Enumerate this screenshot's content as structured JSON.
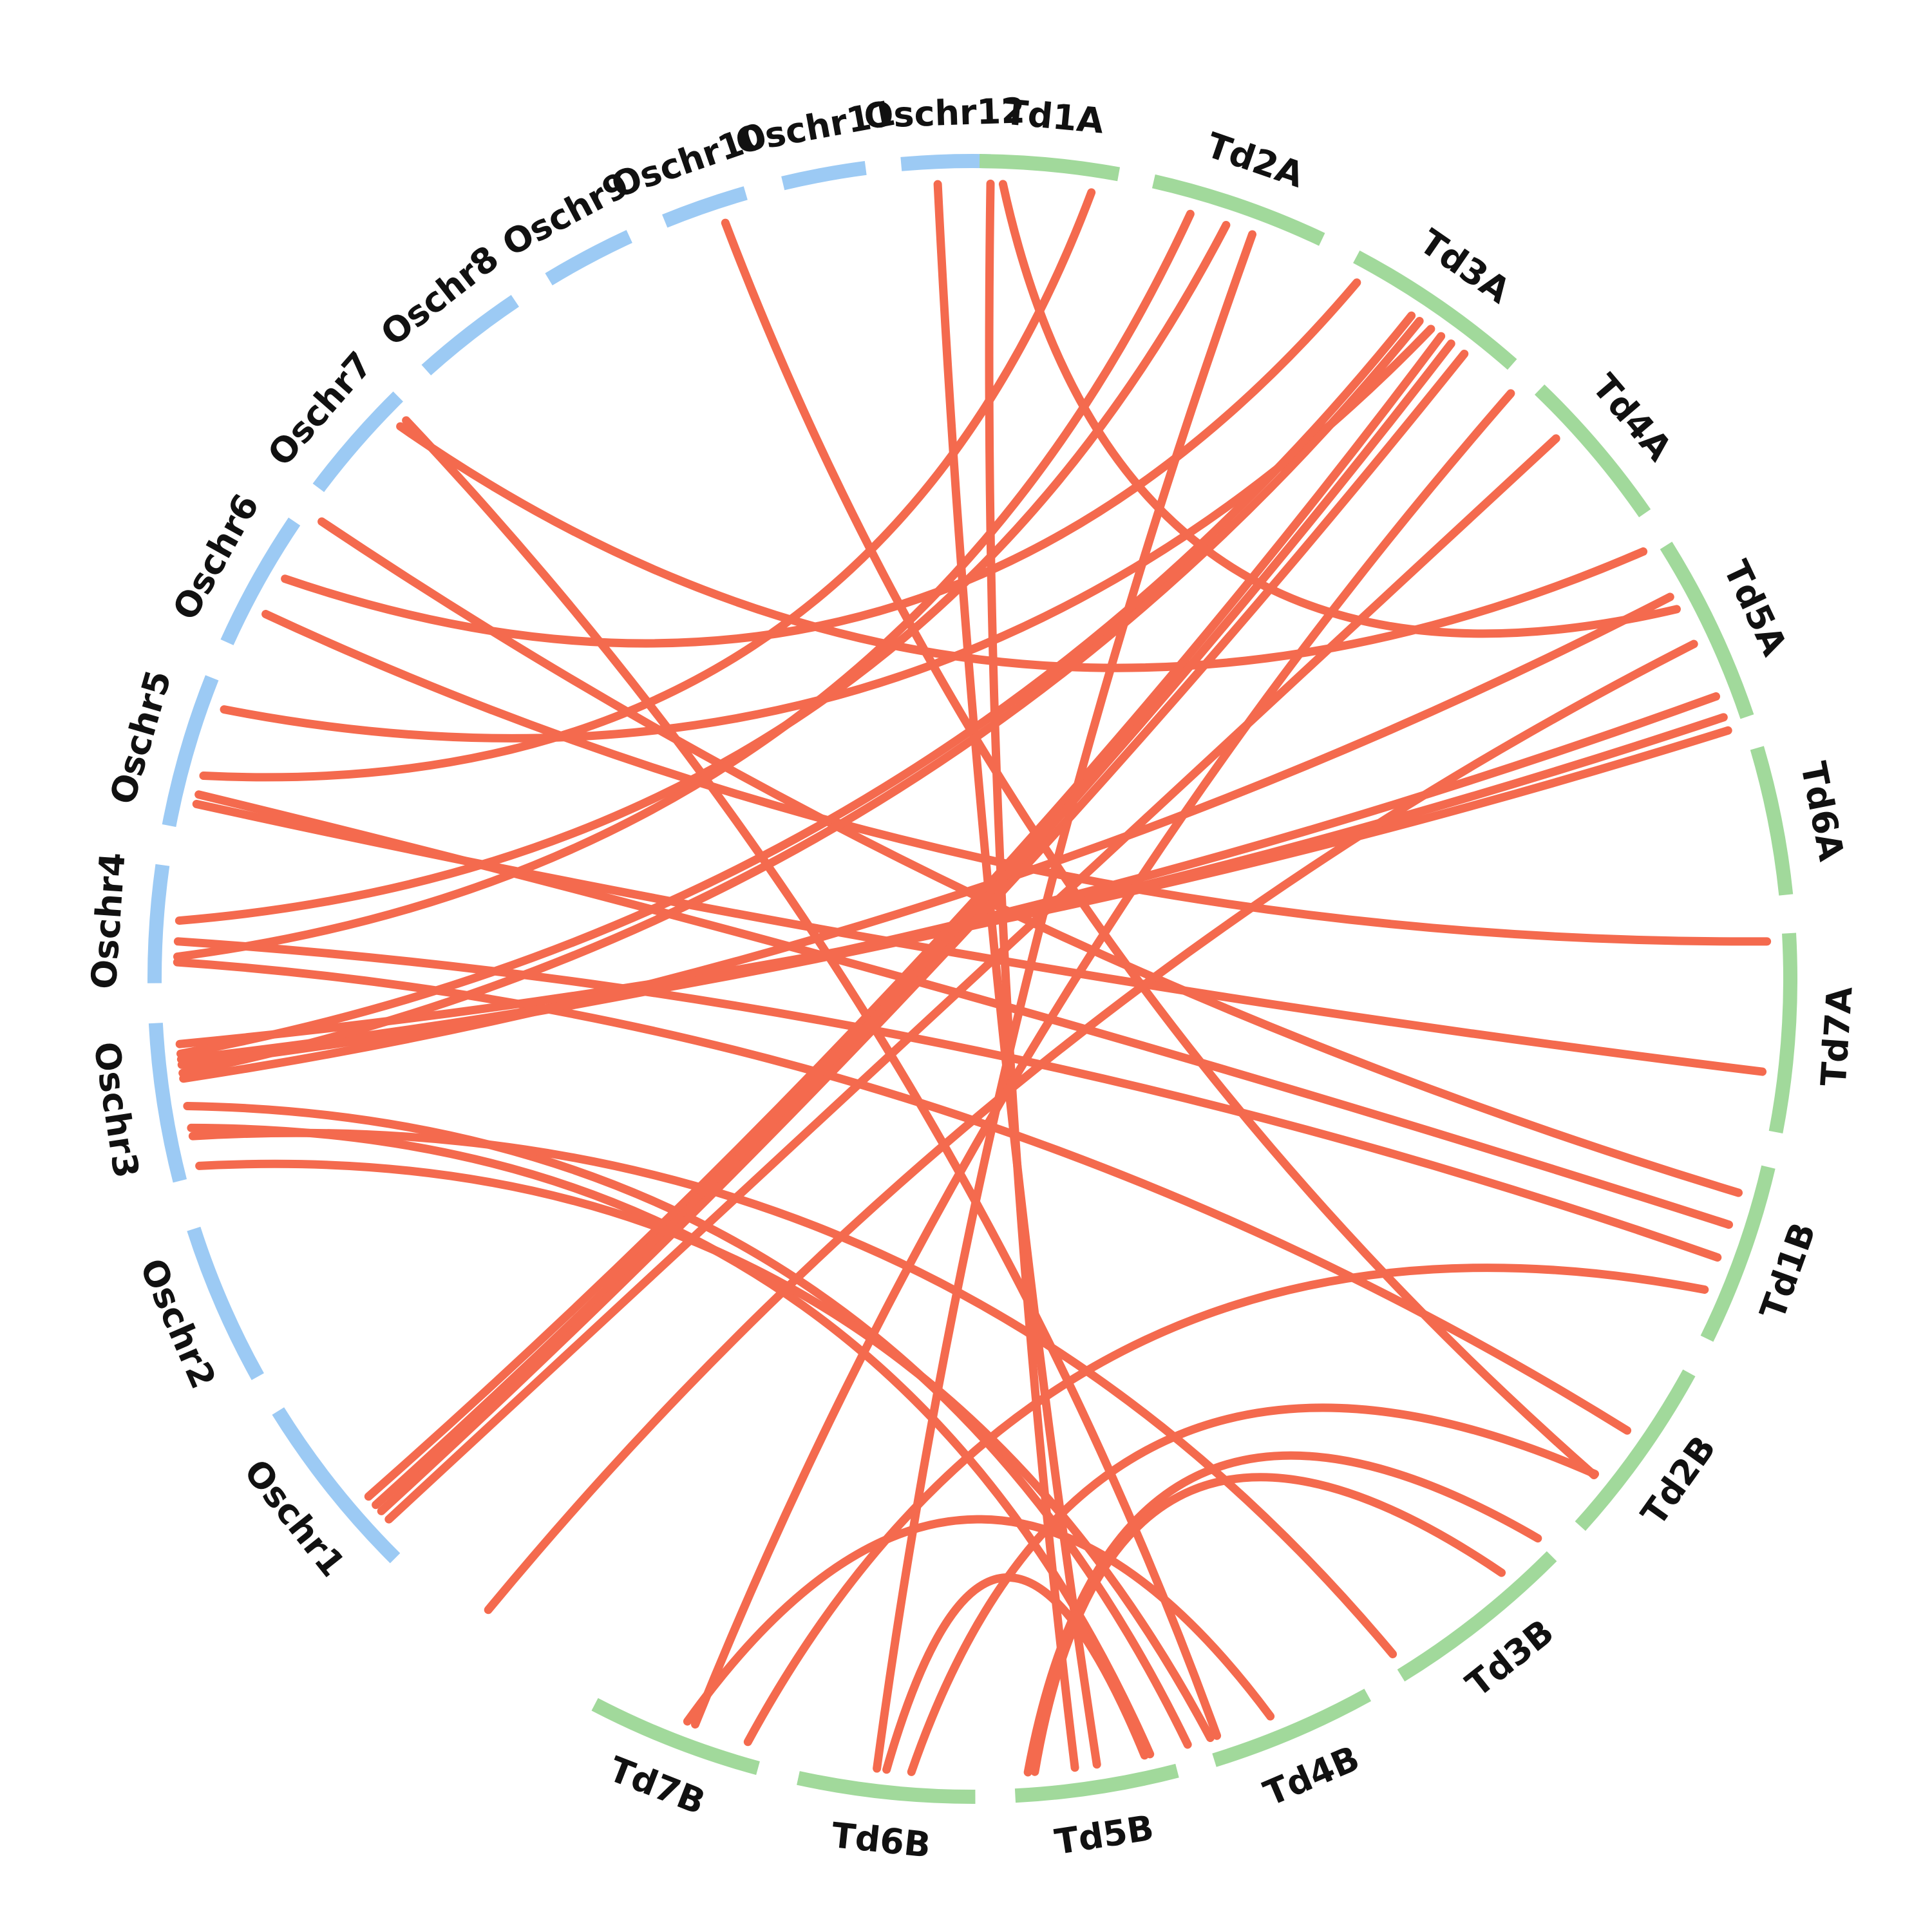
{
  "colors": {
    "oryza_sativa": "#9ccaf4",
    "triticum_durum": "#a1d99b",
    "link": "#f46a4e",
    "label": "#111111"
  },
  "segments": [
    {
      "label": "Oschr1",
      "genome": "oryza_sativa",
      "start_deg": 224.9,
      "end_deg": 238.1
    },
    {
      "label": "Oschr2",
      "genome": "oryza_sativa",
      "start_deg": 240.9,
      "end_deg": 252.2
    },
    {
      "label": "Oschr3",
      "genome": "oryza_sativa",
      "start_deg": 255.7,
      "end_deg": 266.9
    },
    {
      "label": "Oschr4",
      "genome": "oryza_sativa",
      "start_deg": 269.7,
      "end_deg": 278.0
    },
    {
      "label": "Oschr5",
      "genome": "oryza_sativa",
      "start_deg": 280.8,
      "end_deg": 291.6
    },
    {
      "label": "Oschr6",
      "genome": "oryza_sativa",
      "start_deg": 294.3,
      "end_deg": 304.0
    },
    {
      "label": "Oschr7",
      "genome": "oryza_sativa",
      "start_deg": 306.9,
      "end_deg": 315.4
    },
    {
      "label": "Oschr8",
      "genome": "oryza_sativa",
      "start_deg": 318.1,
      "end_deg": 326.0
    },
    {
      "label": "Oschr9",
      "genome": "oryza_sativa",
      "start_deg": 328.8,
      "end_deg": 335.2
    },
    {
      "label": "Oschr10",
      "genome": "oryza_sativa",
      "start_deg": 337.9,
      "end_deg": 343.9
    },
    {
      "label": "Oschr11",
      "genome": "oryza_sativa",
      "start_deg": 346.6,
      "end_deg": 352.5
    },
    {
      "label": "Oschr12",
      "genome": "oryza_sativa",
      "start_deg": 355.0,
      "end_deg": 361.3
    },
    {
      "label": "Td1A",
      "genome": "triticum_durum",
      "start_deg": 0.5,
      "end_deg": 10.3
    },
    {
      "label": "Td2A",
      "genome": "triticum_durum",
      "start_deg": 12.8,
      "end_deg": 25.3
    },
    {
      "label": "Td3A",
      "genome": "triticum_durum",
      "start_deg": 28.0,
      "end_deg": 41.3
    },
    {
      "label": "Td4A",
      "genome": "triticum_durum",
      "start_deg": 43.9,
      "end_deg": 55.3
    },
    {
      "label": "Td5A",
      "genome": "triticum_durum",
      "start_deg": 58.0,
      "end_deg": 71.3
    },
    {
      "label": "Td6A",
      "genome": "triticum_durum",
      "start_deg": 73.6,
      "end_deg": 84.1
    },
    {
      "label": "Td7A",
      "genome": "triticum_durum",
      "start_deg": 86.8,
      "end_deg": 100.8
    },
    {
      "label": "Td1B",
      "genome": "triticum_durum",
      "start_deg": 103.3,
      "end_deg": 116.1
    },
    {
      "label": "Td2B",
      "genome": "triticum_durum",
      "start_deg": 118.8,
      "end_deg": 132.0
    },
    {
      "label": "Td3B",
      "genome": "triticum_durum",
      "start_deg": 134.9,
      "end_deg": 148.4
    },
    {
      "label": "Td4B",
      "genome": "triticum_durum",
      "start_deg": 151.1,
      "end_deg": 162.8
    },
    {
      "label": "Td5B",
      "genome": "triticum_durum",
      "start_deg": 165.5,
      "end_deg": 177.0
    },
    {
      "label": "Td6B",
      "genome": "triticum_durum",
      "start_deg": 179.8,
      "end_deg": 192.3
    },
    {
      "label": "Td7B",
      "genome": "triticum_durum",
      "start_deg": 195.2,
      "end_deg": 207.5
    }
  ],
  "links": [
    {
      "from": "Oschr12",
      "from_deg": 357.5,
      "to": "Td5B",
      "to_deg": 171.0
    },
    {
      "from": "Oschr10",
      "from_deg": 341.9,
      "to": "Td2B",
      "to_deg": 128.6
    },
    {
      "from": "Oschr7",
      "from_deg": 314.6,
      "to": "Td4B",
      "to_deg": 162.1
    },
    {
      "from": "Oschr7",
      "from_deg": 314.0,
      "to": "Td5A",
      "to_deg": 57.5
    },
    {
      "from": "Oschr6",
      "from_deg": 305.1,
      "to": "Td1B",
      "to_deg": 105.6
    },
    {
      "from": "Oschr6",
      "from_deg": 300.2,
      "to": "Td3A",
      "to_deg": 28.9
    },
    {
      "from": "Oschr6",
      "from_deg": 297.3,
      "to": "Td6A",
      "to_deg": 87.3
    },
    {
      "from": "Oschr5",
      "from_deg": 289.8,
      "to": "Td3A",
      "to_deg": 35.2
    },
    {
      "from": "Oschr5",
      "from_deg": 284.8,
      "to": "Td1A",
      "to_deg": 8.6
    },
    {
      "from": "Oschr5",
      "from_deg": 283.4,
      "to": "Td1B",
      "to_deg": 108.0
    },
    {
      "from": "Oschr5",
      "from_deg": 282.7,
      "to": "Td7A",
      "to_deg": 96.7
    },
    {
      "from": "Oschr4",
      "from_deg": 274.2,
      "to": "Td2A",
      "to_deg": 18.6
    },
    {
      "from": "Oschr4",
      "from_deg": 272.7,
      "to": "Td1B",
      "to_deg": 110.5
    },
    {
      "from": "Oschr4",
      "from_deg": 271.6,
      "to": "Td2A",
      "to_deg": 15.9
    },
    {
      "from": "Oschr4",
      "from_deg": 271.2,
      "to": "Td2B",
      "to_deg": 124.6
    },
    {
      "from": "Oschr3",
      "from_deg": 265.3,
      "to": "Td5A",
      "to_deg": 71.8
    },
    {
      "from": "Oschr3",
      "from_deg": 264.6,
      "to": "Td3A",
      "to_deg": 33.5
    },
    {
      "from": "Oschr3",
      "from_deg": 264.2,
      "to": "Td5A",
      "to_deg": 70.8
    },
    {
      "from": "Oschr3",
      "from_deg": 263.8,
      "to": "Td5A",
      "to_deg": 69.2
    },
    {
      "from": "Oschr3",
      "from_deg": 263.2,
      "to": "Td3A",
      "to_deg": 34.2
    },
    {
      "from": "Oschr3",
      "from_deg": 262.8,
      "to": "Td5A",
      "to_deg": 61.3
    },
    {
      "from": "Oschr3",
      "from_deg": 260.8,
      "to": "Td4B",
      "to_deg": 164.3
    },
    {
      "from": "Oschr3",
      "from_deg": 259.2,
      "to": "Td5B",
      "to_deg": 167.1
    },
    {
      "from": "Oschr3",
      "from_deg": 258.6,
      "to": "Td3B",
      "to_deg": 148.1
    },
    {
      "from": "Oschr3",
      "from_deg": 256.4,
      "to": "Td4B",
      "to_deg": 162.6
    },
    {
      "from": "Oschr1",
      "from_deg": 229.4,
      "to": "Td3A",
      "to_deg": 36.1
    },
    {
      "from": "Oschr1",
      "from_deg": 228.6,
      "to": "Td3A",
      "to_deg": 37.0
    },
    {
      "from": "Oschr1",
      "from_deg": 228.0,
      "to": "Td3A",
      "to_deg": 38.2
    },
    {
      "from": "Oschr1",
      "from_deg": 227.2,
      "to": "Td4A",
      "to_deg": 47.2
    },
    {
      "from": "Oschr1",
      "from_deg": 217.5,
      "to": "Td5A",
      "to_deg": 65.1
    },
    {
      "from": "Td1A",
      "from_deg": 1.3,
      "to": "Td5B",
      "to_deg": 172.6
    },
    {
      "from": "Td1A",
      "from_deg": 2.2,
      "to": "Td5A",
      "to_deg": 62.3
    },
    {
      "from": "Td2A",
      "from_deg": 20.6,
      "to": "Td6B",
      "to_deg": 186.9
    },
    {
      "from": "Td3A",
      "from_deg": 42.6,
      "to": "Td7B",
      "to_deg": 200.4
    },
    {
      "from": "Td1B",
      "from_deg": 113.0,
      "to": "Td7B",
      "to_deg": 196.4
    },
    {
      "from": "Td2B",
      "from_deg": 128.5,
      "to": "Td6B",
      "to_deg": 184.4
    },
    {
      "from": "Td3B",
      "from_deg": 134.7,
      "to": "Td5B",
      "to_deg": 176.0
    },
    {
      "from": "Td3B",
      "from_deg": 138.3,
      "to": "Td5B",
      "to_deg": 175.5
    },
    {
      "from": "Td4B",
      "from_deg": 158.0,
      "to": "Td7B",
      "to_deg": 201.0
    },
    {
      "from": "Td5B",
      "from_deg": 167.5,
      "to": "Td6B",
      "to_deg": 186.2
    }
  ]
}
